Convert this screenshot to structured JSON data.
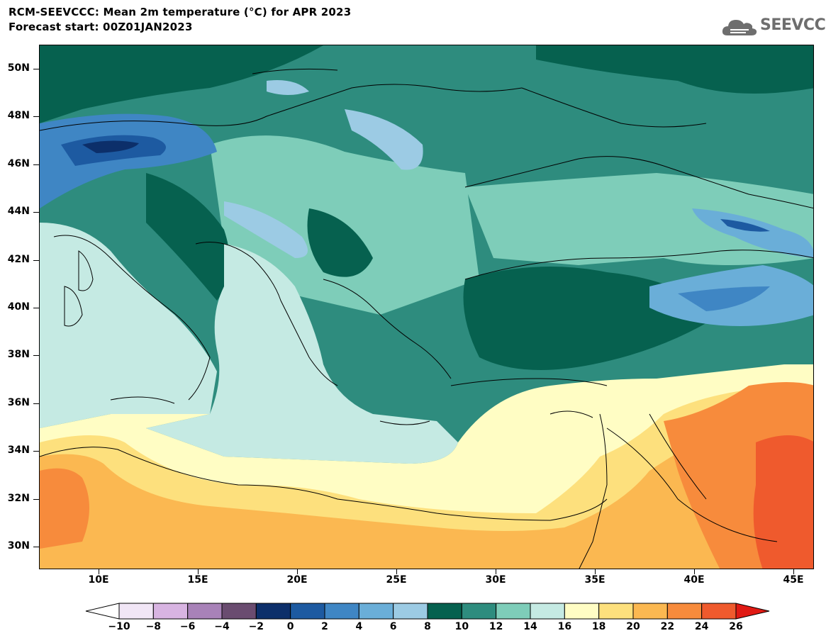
{
  "header": {
    "title": "RCM-SEEVCCC: Mean 2m temperature (°C) for APR 2023",
    "subtitle": "Forecast start: 00Z01JAN2023",
    "logo_text": "SEEVCCC",
    "logo_icon": "cloud-logo-icon"
  },
  "map": {
    "lat_labels": [
      "50N",
      "48N",
      "46N",
      "44N",
      "42N",
      "40N",
      "38N",
      "36N",
      "34N",
      "32N",
      "30N"
    ],
    "lon_labels": [
      "10E",
      "15E",
      "20E",
      "25E",
      "30E",
      "35E",
      "40E",
      "45E"
    ],
    "lat_range": [
      29,
      51
    ],
    "lon_range": [
      7,
      46
    ]
  },
  "legend": {
    "labels": [
      "−10",
      "−8",
      "−6",
      "−4",
      "−2",
      "0",
      "2",
      "4",
      "6",
      "8",
      "10",
      "12",
      "14",
      "16",
      "18",
      "20",
      "22",
      "24",
      "26"
    ],
    "low_color": "#ffffff",
    "high_color": "#e01a14",
    "colors": [
      "#f1e6f6",
      "#d8b4e2",
      "#a882b8",
      "#6a4c70",
      "#0c2f6a",
      "#1d5aa1",
      "#3f86c4",
      "#6aaed8",
      "#9ccbe4",
      "#06614f",
      "#2e8c7e",
      "#7ecdb9",
      "#c5eae3",
      "#fffdc4",
      "#fde07d",
      "#fbb851",
      "#f78b3c",
      "#ef5a2d"
    ]
  }
}
